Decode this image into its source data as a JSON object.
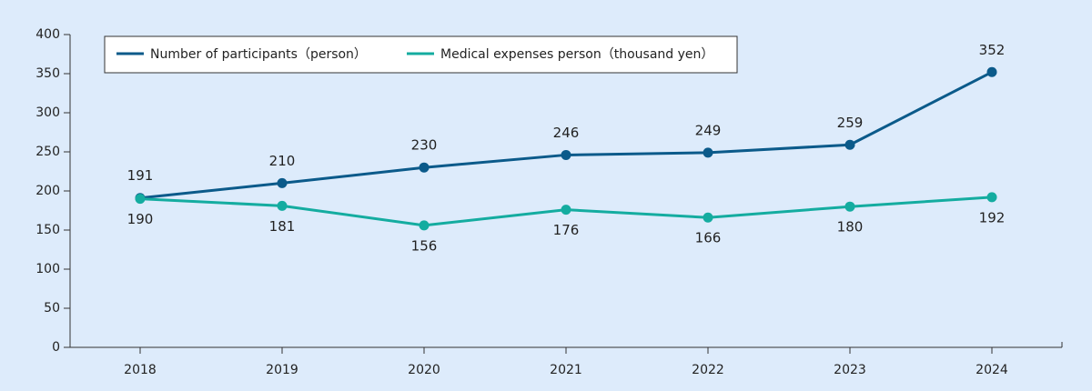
{
  "chart_data": {
    "type": "line",
    "categories": [
      "2018",
      "2019",
      "2020",
      "2021",
      "2022",
      "2023",
      "2024"
    ],
    "series": [
      {
        "name": "Number of participants（person）",
        "color": "#0b5a8a",
        "values": [
          191,
          210,
          230,
          246,
          249,
          259,
          352
        ]
      },
      {
        "name": "Medical expenses person（thousand yen）",
        "color": "#14aca0",
        "values": [
          190,
          181,
          156,
          176,
          166,
          180,
          192
        ]
      }
    ],
    "ylim": [
      0,
      400
    ],
    "yticks": [
      0,
      50,
      100,
      150,
      200,
      250,
      300,
      350,
      400
    ],
    "grid": false,
    "legend": "top-left"
  }
}
